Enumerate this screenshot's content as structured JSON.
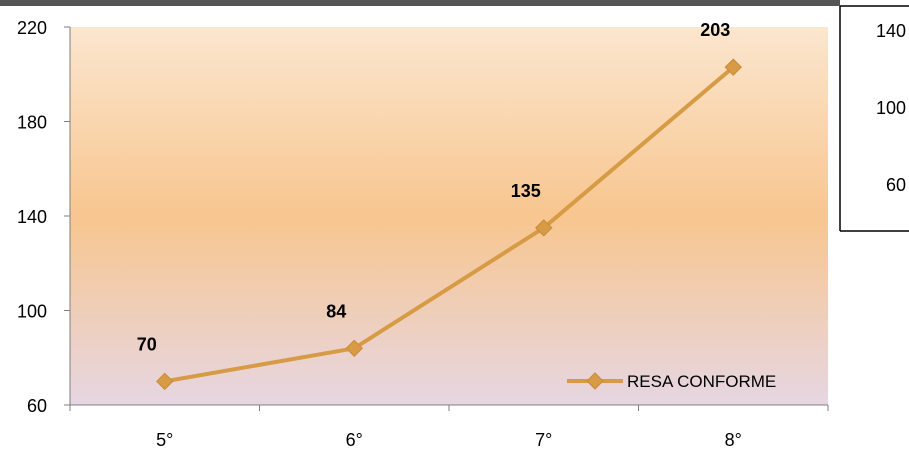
{
  "chart_data": {
    "type": "line",
    "categories": [
      "5°",
      "6°",
      "7°",
      "8°"
    ],
    "series": [
      {
        "name": "RESA CONFORME",
        "values": [
          70,
          84,
          135,
          203
        ],
        "color": "#d79b45"
      }
    ],
    "data_labels": [
      "70",
      "84",
      "135",
      "203"
    ],
    "ylim": [
      60,
      220
    ],
    "yticks": [
      60,
      100,
      140,
      180,
      220
    ],
    "ytick_labels": [
      "60",
      "100",
      "140",
      "180",
      "220"
    ],
    "legend_position": "bottom-right",
    "plot_background": [
      "#fbe6cf",
      "#f8c68f",
      "#e6d6e2"
    ]
  },
  "inset_chart": {
    "ytick_labels": [
      "140",
      "100",
      "60"
    ]
  }
}
